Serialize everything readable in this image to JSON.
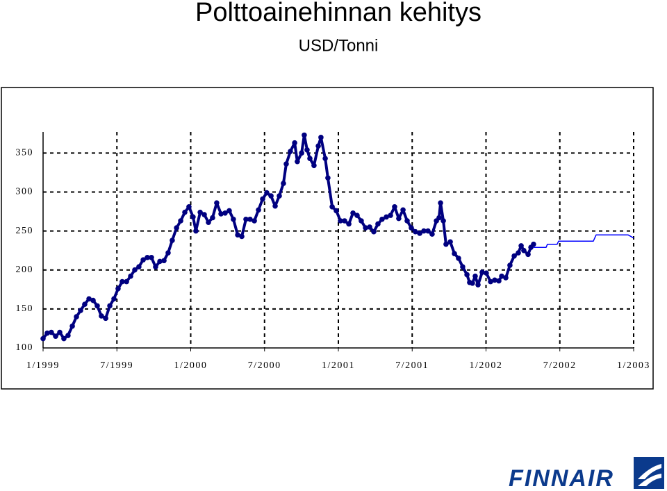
{
  "chart_data": {
    "type": "line",
    "title": "Polttoainehinnan kehitys",
    "subtitle": "USD/Tonni",
    "logo": "FINNAIR",
    "xlim": [
      1999,
      2003
    ],
    "ylim": [
      100,
      377
    ],
    "grid": true,
    "xticks": [
      {
        "value": 1999,
        "label": "1/1999"
      },
      {
        "value": 1999.5,
        "label": "7/1999"
      },
      {
        "value": 2000,
        "label": "1/2000"
      },
      {
        "value": 2000.5,
        "label": "7/2000"
      },
      {
        "value": 2001,
        "label": "1/2001"
      },
      {
        "value": 2001.5,
        "label": "7/2001"
      },
      {
        "value": 2002,
        "label": "1/2002"
      },
      {
        "value": 2002.5,
        "label": "7/2002"
      },
      {
        "value": 2003,
        "label": "1/2003"
      }
    ],
    "yticks": [
      100,
      150,
      200,
      250,
      300,
      350
    ],
    "series": [
      {
        "color": "#000080",
        "markers": true,
        "x": [
          1999,
          1999.028,
          1999.056,
          1999.085,
          1999.113,
          1999.141,
          1999.169,
          1999.198,
          1999.226,
          1999.254,
          1999.282,
          1999.311,
          1999.339,
          1999.367,
          1999.395,
          1999.424,
          1999.452,
          1999.48,
          1999.508,
          1999.536,
          1999.565,
          1999.593,
          1999.621,
          1999.649,
          1999.678,
          1999.706,
          1999.734,
          1999.762,
          1999.791,
          1999.819,
          1999.847,
          1999.875,
          1999.904,
          1999.932,
          1999.96,
          1999.988,
          2000.016,
          2000.035,
          2000.064,
          2000.092,
          2000.12,
          2000.148,
          2000.176,
          2000.205,
          2000.233,
          2000.261,
          2000.289,
          2000.318,
          2000.346,
          2000.374,
          2000.402,
          2000.431,
          2000.459,
          2000.487,
          2000.515,
          2000.544,
          2000.572,
          2000.6,
          2000.628,
          2000.647,
          2000.675,
          2000.704,
          2000.722,
          2000.751,
          2000.769,
          2000.788,
          2000.807,
          2000.835,
          2000.864,
          2000.882,
          2000.911,
          2000.929,
          2000.958,
          2000.986,
          2001.014,
          2001.042,
          2001.071,
          2001.099,
          2001.127,
          2001.155,
          2001.184,
          2001.212,
          2001.24,
          2001.268,
          2001.296,
          2001.325,
          2001.353,
          2001.381,
          2001.409,
          2001.438,
          2001.466,
          2001.494,
          2001.522,
          2001.551,
          2001.579,
          2001.607,
          2001.635,
          2001.664,
          2001.682,
          2001.692,
          2001.711,
          2001.729,
          2001.758,
          2001.786,
          2001.814,
          2001.842,
          2001.871,
          2001.889,
          2001.908,
          2001.927,
          2001.946,
          2001.974,
          2002.002,
          2002.031,
          2002.059,
          2002.087,
          2002.106,
          2002.134,
          2002.162,
          2002.191,
          2002.219,
          2002.238,
          2002.256,
          2002.285,
          2002.304,
          2002.322
        ],
        "values": [
          112,
          119,
          120,
          115,
          120,
          112,
          116,
          128,
          140,
          148,
          156,
          163,
          161,
          154,
          141,
          138,
          154,
          163,
          176,
          185,
          185,
          192,
          200,
          204,
          213,
          216,
          216,
          204,
          211,
          212,
          222,
          238,
          254,
          263,
          274,
          281,
          268,
          250,
          274,
          271,
          261,
          267,
          286,
          272,
          273,
          276,
          265,
          245,
          243,
          265,
          265,
          263,
          277,
          291,
          299,
          295,
          282,
          295,
          311,
          336,
          352,
          363,
          339,
          350,
          373,
          354,
          343,
          334,
          359,
          370,
          343,
          318,
          281,
          276,
          263,
          263,
          259,
          273,
          270,
          263,
          254,
          255,
          249,
          259,
          265,
          268,
          270,
          281,
          266,
          277,
          263,
          254,
          249,
          247,
          250,
          250,
          246,
          263,
          267,
          286,
          263,
          233,
          236,
          221,
          215,
          204,
          194,
          184,
          183,
          192,
          181,
          197,
          196,
          185,
          187,
          186,
          192,
          190,
          206,
          218,
          222,
          231,
          225,
          220,
          229,
          233
        ]
      },
      {
        "color": "#0000ff",
        "markers": false,
        "x": [
          2002.322,
          2002.407,
          2002.416,
          2002.482,
          2002.492,
          2002.727,
          2002.746,
          2002.962,
          2003
        ],
        "values": [
          229,
          229,
          233,
          233,
          237,
          237,
          245,
          245,
          241
        ]
      }
    ]
  }
}
